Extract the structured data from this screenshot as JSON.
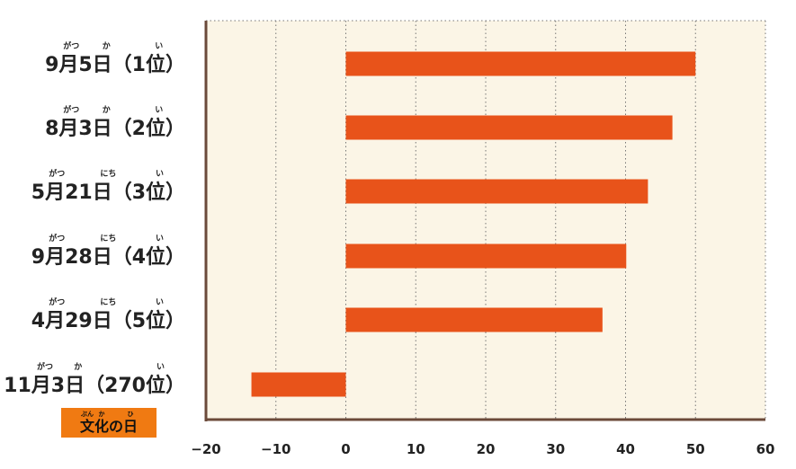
{
  "chart_data": {
    "type": "bar",
    "orientation": "horizontal",
    "categories": [
      "9月5日（1位）",
      "8月3日（2位）",
      "5月21日（3位）",
      "9月28日（4位）",
      "4月29日（5位）",
      "11月3日（270位）"
    ],
    "category_ruby": [
      [
        "がつ",
        "か",
        "い"
      ],
      [
        "がつ",
        "か",
        "い"
      ],
      [
        "がつ",
        "にち",
        "い"
      ],
      [
        "がつ",
        "にち",
        "い"
      ],
      [
        "がつ",
        "にち",
        "い"
      ],
      [
        "がつ",
        "か",
        "い"
      ]
    ],
    "values": [
      50,
      46.7,
      43.2,
      40.1,
      36.7,
      -13.5
    ],
    "xlim": [
      -20,
      60
    ],
    "x_ticks": [
      -20,
      -10,
      0,
      10,
      20,
      30,
      40,
      50,
      60
    ],
    "grid": true,
    "bar_color": "#e8531a",
    "plot_background": "#fbf5e6",
    "axis_color": "#6b4a3a",
    "annotation": {
      "text": "文化の日",
      "ruby": [
        "ぶん",
        "か",
        "ひ"
      ],
      "background": "#f07a12"
    }
  }
}
